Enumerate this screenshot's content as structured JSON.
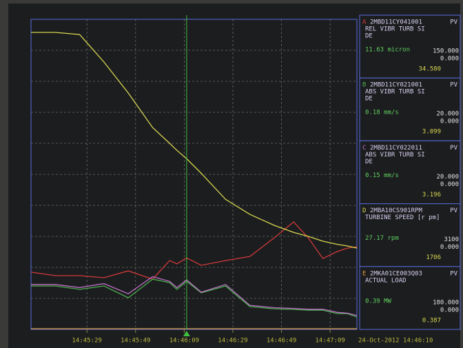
{
  "chart_data": {
    "type": "line",
    "xlim": [
      "14:45:06",
      "14:47:20"
    ],
    "xticks": [
      "14:45:29",
      "14:45:49",
      "14:46:09",
      "14:46:29",
      "14:46:49",
      "14:47:09"
    ],
    "grid": true,
    "x": [
      "14:45:06",
      "14:45:16",
      "14:45:26",
      "14:45:36",
      "14:45:46",
      "14:45:56",
      "14:46:03",
      "14:46:06",
      "14:46:10",
      "14:46:16",
      "14:46:26",
      "14:46:36",
      "14:46:46",
      "14:46:54",
      "14:47:00",
      "14:47:06",
      "14:47:12",
      "14:47:16",
      "14:47:20"
    ],
    "series": [
      {
        "name": "A",
        "color": "#d23a3a",
        "ylim": [
          {
            "value": 0,
            "label": "0.000"
          },
          {
            "value": 150,
            "label": "150.000"
          }
        ],
        "values": [
          27.7,
          26,
          26,
          25,
          28.3,
          24.3,
          33.3,
          31.7,
          34.58,
          31,
          33.3,
          35.3,
          44.3,
          52,
          44.3,
          34.3,
          37.7,
          39.3,
          40
        ],
        "value_label": "34.580"
      },
      {
        "name": "B",
        "color": "#4caf50",
        "ylim": [
          {
            "value": 0,
            "label": "0.000"
          },
          {
            "value": 20,
            "label": "20.000"
          }
        ],
        "values": [
          2.8,
          2.8,
          2.58,
          2.8,
          2.04,
          3.24,
          3.02,
          2.58,
          3.099,
          2.36,
          2.8,
          1.47,
          1.33,
          1.29,
          1.24,
          1.24,
          1.02,
          1.02,
          0.8
        ],
        "value_label": "3.099"
      },
      {
        "name": "C",
        "color": "#c070c8",
        "ylim": [
          {
            "value": 0,
            "label": "0.000"
          },
          {
            "value": 20,
            "label": "20.000"
          }
        ],
        "values": [
          2.9,
          2.9,
          2.7,
          2.95,
          2.3,
          3.4,
          3.1,
          2.7,
          3.196,
          2.4,
          2.9,
          1.55,
          1.4,
          1.35,
          1.3,
          1.3,
          1.1,
          1.05,
          0.9
        ],
        "value_label": "3.196"
      },
      {
        "name": "D",
        "color": "#d8d850",
        "ylim": [
          {
            "value": 0,
            "label": "0.000"
          },
          {
            "value": 3100,
            "label": "3100"
          }
        ],
        "values": [
          2969,
          2969,
          2948,
          2673,
          2363,
          2018,
          1860,
          1790,
          1706,
          1560,
          1300,
          1150,
          1040,
          970,
          930,
          882,
          850,
          834,
          813
        ],
        "value_label": "1706"
      },
      {
        "name": "E",
        "color": "#e0a040",
        "ylim": [
          {
            "value": 0,
            "label": "0.000"
          },
          {
            "value": 180,
            "label": "180.000"
          }
        ],
        "values": [
          0.39,
          0.39,
          0.39,
          0.39,
          0.39,
          0.39,
          0.39,
          0.39,
          0.387,
          0.39,
          0.39,
          0.39,
          0.39,
          0.39,
          0.39,
          0.39,
          0.39,
          0.39,
          0.39
        ],
        "value_label": "0.387"
      }
    ]
  },
  "panels": [
    {
      "tag": "2MBD11CY041001",
      "mode": "PV",
      "desc": "REL VIBR TURB SI DE",
      "current": "11.63 micron"
    },
    {
      "tag": "2MBD11CY021001",
      "mode": "PV",
      "desc": "ABS VIBR TURB SI DE",
      "current": "0.18 mm/s"
    },
    {
      "tag": "2MBD11CY022011",
      "mode": "PV",
      "desc": "ABS VIBR TURB SI DE",
      "current": "0.15 mm/s"
    },
    {
      "tag": "2MBA10CS901RPM",
      "mode": "PV",
      "desc": "TURBINE SPEED [r pm]",
      "current": "27.17 rpm"
    },
    {
      "tag": "2MKA01CE003Q03",
      "mode": "PV",
      "desc": "ACTUAL LOAD",
      "current": "0.39 MW"
    }
  ],
  "footer": "24-Oct-2012 14:46:10"
}
